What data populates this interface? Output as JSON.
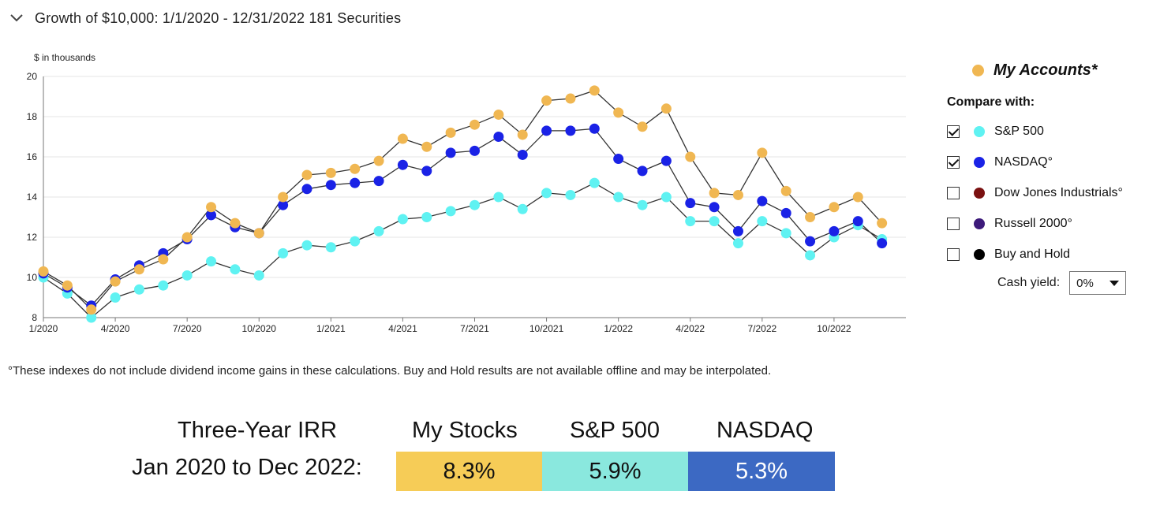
{
  "header": {
    "title": "Growth of $10,000:  1/1/2020 - 12/31/2022  181 Securities",
    "collapse_icon": "chevron-down-icon"
  },
  "chart_data": {
    "type": "line",
    "ylabel": "$ in thousands",
    "ylim": [
      8,
      20
    ],
    "yticks": [
      8,
      10,
      12,
      14,
      16,
      18,
      20
    ],
    "xlim": [
      0,
      36
    ],
    "xticks": [
      {
        "label": "1/2020",
        "x": 0
      },
      {
        "label": "4/2020",
        "x": 3
      },
      {
        "label": "7/2020",
        "x": 6
      },
      {
        "label": "10/2020",
        "x": 9
      },
      {
        "label": "1/2021",
        "x": 12
      },
      {
        "label": "4/2021",
        "x": 15
      },
      {
        "label": "7/2021",
        "x": 18
      },
      {
        "label": "10/2021",
        "x": 21
      },
      {
        "label": "1/2022",
        "x": 24
      },
      {
        "label": "4/2022",
        "x": 27
      },
      {
        "label": "7/2022",
        "x": 30
      },
      {
        "label": "10/2022",
        "x": 33
      }
    ],
    "grid": "horizontal",
    "series": [
      {
        "name": "S&P 500",
        "color": "#5ff2f2",
        "values": [
          10.0,
          9.2,
          8.0,
          9.0,
          9.4,
          9.6,
          10.1,
          10.8,
          10.4,
          10.1,
          11.2,
          11.6,
          11.5,
          11.8,
          12.3,
          12.9,
          13.0,
          13.3,
          13.6,
          14.0,
          13.4,
          14.2,
          14.1,
          14.7,
          14.0,
          13.6,
          14.0,
          12.8,
          12.8,
          11.7,
          12.8,
          12.2,
          11.1,
          12.0,
          12.6,
          11.9
        ]
      },
      {
        "name": "NASDAQ°",
        "color": "#1a22e6",
        "values": [
          10.2,
          9.5,
          8.6,
          9.9,
          10.6,
          11.2,
          11.9,
          13.1,
          12.5,
          12.2,
          13.6,
          14.4,
          14.6,
          14.7,
          14.8,
          15.6,
          15.3,
          16.2,
          16.3,
          17.0,
          16.1,
          17.3,
          17.3,
          17.4,
          15.9,
          15.3,
          15.8,
          13.7,
          13.5,
          12.3,
          13.8,
          13.2,
          11.8,
          12.3,
          12.8,
          11.7
        ]
      },
      {
        "name": "My Accounts*",
        "color": "#f0b752",
        "values": [
          10.3,
          9.6,
          8.4,
          9.8,
          10.4,
          10.9,
          12.0,
          13.5,
          12.7,
          12.2,
          14.0,
          15.1,
          15.2,
          15.4,
          15.8,
          16.9,
          16.5,
          17.2,
          17.6,
          18.1,
          17.1,
          18.8,
          18.9,
          19.3,
          18.2,
          17.5,
          18.4,
          16.0,
          14.2,
          14.1,
          16.2,
          14.3,
          13.0,
          13.5,
          14.0,
          12.7
        ]
      }
    ]
  },
  "legend": {
    "main_label": "My Accounts*",
    "main_color": "#f0b752",
    "compare_label": "Compare with:",
    "items": [
      {
        "label": "S&P 500",
        "color": "#5ff2f2",
        "checked": true
      },
      {
        "label": "NASDAQ°",
        "color": "#1a22e6",
        "checked": true
      },
      {
        "label": "Dow Jones Industrials°",
        "color": "#7a1010",
        "checked": false
      },
      {
        "label": "Russell 2000°",
        "color": "#3d1a7a",
        "checked": false
      },
      {
        "label": "Buy and Hold",
        "color": "#000000",
        "checked": false
      }
    ],
    "cash_yield_label": "Cash yield:",
    "cash_yield_value": "0%"
  },
  "footnote": "°These indexes do not include dividend income gains in these calculations. Buy and Hold results are not available offline and may be interpolated.",
  "irr": {
    "label_line1": "Three-Year IRR",
    "label_line2": "Jan 2020 to Dec 2022:",
    "columns": [
      {
        "header": "My Stocks",
        "value": "8.3%",
        "bg": "#f6cc57",
        "fg": "#111111"
      },
      {
        "header": "S&P 500",
        "value": "5.9%",
        "bg": "#8ae8de",
        "fg": "#111111"
      },
      {
        "header": "NASDAQ",
        "value": "5.3%",
        "bg": "#3c69c3",
        "fg": "#ffffff"
      }
    ]
  }
}
